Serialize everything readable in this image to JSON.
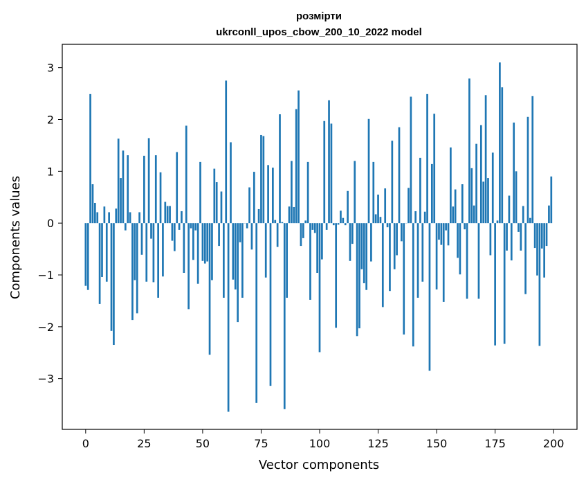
{
  "chart_data": {
    "type": "bar",
    "title": "розмірти",
    "subtitle": "ukrconll_upos_cbow_200_10_2022 model",
    "xlabel": "Vector components",
    "ylabel": "Components values",
    "xlim": [
      -10,
      210
    ],
    "ylim": [
      -3.98,
      3.45
    ],
    "xticks": [
      0,
      25,
      50,
      75,
      100,
      125,
      150,
      175,
      200
    ],
    "yticks": [
      -3,
      -2,
      -1,
      0,
      1,
      2,
      3
    ],
    "bar_color": "#1f77b4",
    "grid": false,
    "legend": "none",
    "values": [
      -1.21,
      -1.29,
      2.49,
      0.75,
      0.39,
      0.21,
      -1.56,
      -1.04,
      0.32,
      -1.13,
      0.21,
      -2.08,
      -2.35,
      0.28,
      1.63,
      0.87,
      1.4,
      -0.14,
      1.31,
      0.21,
      -1.87,
      -1.1,
      -1.74,
      0.21,
      -0.61,
      1.3,
      -1.13,
      1.64,
      -0.3,
      -1.14,
      1.31,
      -1.44,
      0.98,
      -1.03,
      0.41,
      0.33,
      0.33,
      -0.34,
      -0.54,
      1.37,
      -0.13,
      0.23,
      -0.96,
      1.88,
      -1.66,
      -0.1,
      -0.71,
      -0.14,
      -1.17,
      1.18,
      -0.73,
      -0.78,
      -0.74,
      -2.54,
      -1.1,
      1.05,
      0.79,
      -0.44,
      0.61,
      -1.44,
      2.75,
      -3.64,
      1.56,
      -1.09,
      -1.28,
      -1.91,
      -0.37,
      -1.44,
      0.0,
      -0.1,
      0.69,
      -0.51,
      0.99,
      -3.47,
      0.27,
      1.7,
      1.68,
      -1.05,
      1.12,
      -3.14,
      1.07,
      0.06,
      -0.46,
      2.1,
      0.02,
      -3.59,
      -1.44,
      0.32,
      1.2,
      0.31,
      2.2,
      2.56,
      -0.44,
      -0.29,
      0.05,
      1.18,
      -1.48,
      -0.13,
      -0.19,
      -0.96,
      -2.49,
      -0.7,
      1.97,
      -0.13,
      2.37,
      1.92,
      -0.04,
      -2.02,
      -0.03,
      0.24,
      0.1,
      -0.04,
      0.62,
      -0.73,
      -0.4,
      1.2,
      -2.18,
      -2.03,
      -0.89,
      -1.16,
      -1.29,
      2.01,
      -0.74,
      1.18,
      0.17,
      0.55,
      0.12,
      -1.62,
      0.67,
      -0.08,
      -1.31,
      1.59,
      -0.89,
      -0.62,
      1.85,
      -0.35,
      -2.15,
      0.0,
      0.68,
      2.44,
      -2.38,
      0.23,
      -1.44,
      1.26,
      -1.13,
      0.22,
      2.49,
      -2.85,
      1.14,
      2.11,
      -1.28,
      -0.32,
      -0.42,
      -1.52,
      -0.14,
      -0.43,
      1.46,
      0.32,
      0.65,
      -0.67,
      -0.99,
      0.75,
      -0.12,
      -1.46,
      2.79,
      1.06,
      0.34,
      1.53,
      -1.46,
      1.89,
      0.8,
      2.47,
      0.87,
      -0.62,
      1.36,
      -2.36,
      0.05,
      3.1,
      2.62,
      -2.33,
      -0.53,
      0.53,
      -0.72,
      1.94,
      1.0,
      -0.17,
      -0.53,
      0.33,
      -1.37,
      2.05,
      0.1,
      2.45,
      -0.48,
      -1.01,
      -2.37,
      -0.49,
      -1.05,
      -0.44,
      0.34,
      0.9
    ]
  }
}
